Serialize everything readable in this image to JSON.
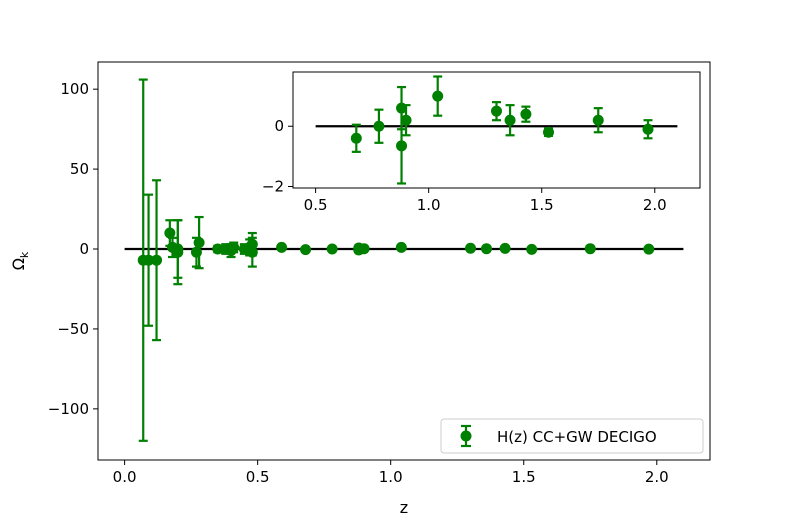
{
  "chart_data": [
    {
      "type": "scatter",
      "panel": "main",
      "xlabel": "z",
      "ylabel": "Ω",
      "ylabel_sub": "k",
      "xlim": [
        -0.1,
        2.2
      ],
      "ylim": [
        -132,
        117
      ],
      "xticks": [
        0.0,
        0.5,
        1.0,
        1.5,
        2.0
      ],
      "xtick_labels": [
        "0.0",
        "0.5",
        "1.0",
        "1.5",
        "2.0"
      ],
      "yticks": [
        -100,
        -50,
        0,
        50,
        100
      ],
      "ytick_labels": [
        "−100",
        "−50",
        "0",
        "50",
        "100"
      ],
      "grid": false,
      "legend_position": "lower right",
      "reference_line": {
        "y": 0,
        "x_from": 0.0,
        "x_to": 2.1,
        "color": "#000000"
      },
      "series": [
        {
          "name": "H(z) CC+GW DECIGO",
          "color": "#008000",
          "points": [
            {
              "x": 0.07,
              "y": -7,
              "err": 113
            },
            {
              "x": 0.09,
              "y": -7,
              "err": 41
            },
            {
              "x": 0.12,
              "y": -7,
              "err": 50
            },
            {
              "x": 0.17,
              "y": 10,
              "err": 8
            },
            {
              "x": 0.18,
              "y": 1,
              "err": 6
            },
            {
              "x": 0.2,
              "y": -2,
              "err": 20
            },
            {
              "x": 0.2,
              "y": 0,
              "err": 18
            },
            {
              "x": 0.27,
              "y": -2,
              "err": 9
            },
            {
              "x": 0.28,
              "y": 4,
              "err": 16
            },
            {
              "x": 0.35,
              "y": 0,
              "err": 2
            },
            {
              "x": 0.38,
              "y": 0,
              "err": 3
            },
            {
              "x": 0.4,
              "y": -1,
              "err": 4
            },
            {
              "x": 0.41,
              "y": 1,
              "err": 3
            },
            {
              "x": 0.45,
              "y": 0,
              "err": 3
            },
            {
              "x": 0.47,
              "y": 1,
              "err": 5
            },
            {
              "x": 0.48,
              "y": -2,
              "err": 9
            },
            {
              "x": 0.48,
              "y": 3,
              "err": 7
            },
            {
              "x": 0.59,
              "y": 1,
              "err": 1
            },
            {
              "x": 0.68,
              "y": -0.4,
              "err": 0.45
            },
            {
              "x": 0.78,
              "y": 0,
              "err": 0.55
            },
            {
              "x": 0.88,
              "y": 0.6,
              "err": 0.7
            },
            {
              "x": 0.88,
              "y": -0.65,
              "err": 1.25
            },
            {
              "x": 0.9,
              "y": 0.2,
              "err": 0.5
            },
            {
              "x": 1.04,
              "y": 1.0,
              "err": 0.65
            },
            {
              "x": 1.3,
              "y": 0.5,
              "err": 0.3
            },
            {
              "x": 1.36,
              "y": 0.2,
              "err": 0.5
            },
            {
              "x": 1.43,
              "y": 0.4,
              "err": 0.25
            },
            {
              "x": 1.53,
              "y": -0.2,
              "err": 0.12
            },
            {
              "x": 1.75,
              "y": 0.2,
              "err": 0.4
            },
            {
              "x": 1.97,
              "y": -0.1,
              "err": 0.3
            }
          ]
        }
      ]
    },
    {
      "type": "scatter",
      "panel": "inset",
      "xlim": [
        0.4,
        2.2
      ],
      "ylim": [
        -2.05,
        1.8
      ],
      "xticks": [
        0.5,
        1.0,
        1.5,
        2.0
      ],
      "xtick_labels": [
        "0.5",
        "1.0",
        "1.5",
        "2.0"
      ],
      "yticks": [
        -2,
        0
      ],
      "ytick_labels": [
        "−2",
        "0"
      ],
      "grid": false,
      "reference_line": {
        "y": 0,
        "x_from": 0.5,
        "x_to": 2.1,
        "color": "#000000"
      },
      "series": [
        {
          "color": "#008000",
          "points": [
            {
              "x": 0.68,
              "y": -0.4,
              "err": 0.45
            },
            {
              "x": 0.78,
              "y": 0.0,
              "err": 0.55
            },
            {
              "x": 0.88,
              "y": 0.6,
              "err": 0.7
            },
            {
              "x": 0.88,
              "y": -0.65,
              "err": 1.25
            },
            {
              "x": 0.9,
              "y": 0.2,
              "err": 0.5
            },
            {
              "x": 1.04,
              "y": 1.0,
              "err": 0.65
            },
            {
              "x": 1.3,
              "y": 0.5,
              "err": 0.3
            },
            {
              "x": 1.36,
              "y": 0.2,
              "err": 0.5
            },
            {
              "x": 1.43,
              "y": 0.4,
              "err": 0.25
            },
            {
              "x": 1.53,
              "y": -0.2,
              "err": 0.12
            },
            {
              "x": 1.75,
              "y": 0.2,
              "err": 0.4
            },
            {
              "x": 1.97,
              "y": -0.1,
              "err": 0.3
            }
          ]
        }
      ]
    }
  ]
}
